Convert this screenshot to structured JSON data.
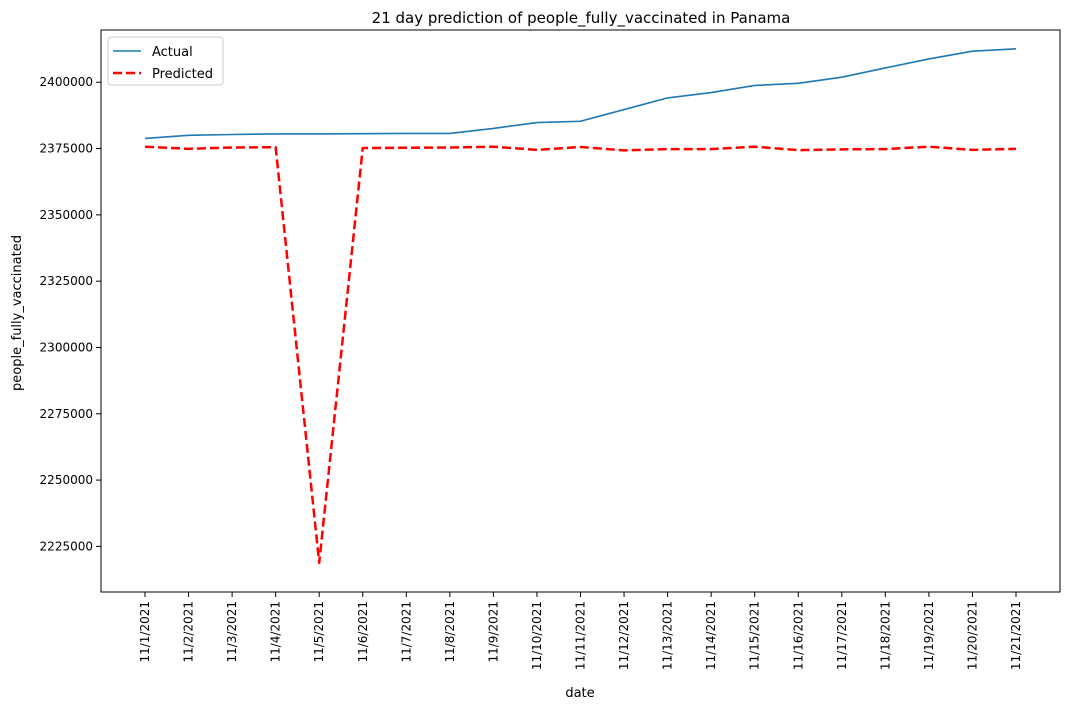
{
  "chart_data": {
    "type": "line",
    "title": "21 day prediction of people_fully_vaccinated in Panama",
    "xlabel": "date",
    "ylabel": "people_fully_vaccinated",
    "categories": [
      "11/1/2021",
      "11/2/2021",
      "11/3/2021",
      "11/4/2021",
      "11/5/2021",
      "11/6/2021",
      "11/7/2021",
      "11/8/2021",
      "11/9/2021",
      "11/10/2021",
      "11/11/2021",
      "11/12/2021",
      "11/13/2021",
      "11/14/2021",
      "11/15/2021",
      "11/16/2021",
      "11/17/2021",
      "11/18/2021",
      "11/19/2021",
      "11/20/2021",
      "11/21/2021"
    ],
    "yticks": [
      2225000,
      2250000,
      2275000,
      2300000,
      2325000,
      2350000,
      2375000,
      2400000
    ],
    "ylim": [
      2207800,
      2419700
    ],
    "legend_position": "top-left",
    "grid": false,
    "series": [
      {
        "name": "Actual",
        "color": "#1f77b4",
        "style": "solid",
        "values": [
          2378800,
          2380000,
          2380300,
          2380500,
          2380500,
          2380600,
          2380700,
          2380700,
          2382600,
          2384800,
          2385300,
          2389700,
          2394100,
          2396100,
          2398800,
          2399600,
          2401900,
          2405400,
          2408800,
          2411700,
          2412600
        ]
      },
      {
        "name": "Predicted",
        "color": "#ff0000",
        "style": "dashed",
        "values": [
          2375700,
          2374900,
          2375400,
          2375500,
          2218800,
          2375200,
          2375300,
          2375400,
          2375700,
          2374500,
          2375600,
          2374300,
          2374800,
          2374800,
          2375700,
          2374400,
          2374700,
          2374800,
          2375700,
          2374500,
          2374900
        ]
      }
    ]
  }
}
